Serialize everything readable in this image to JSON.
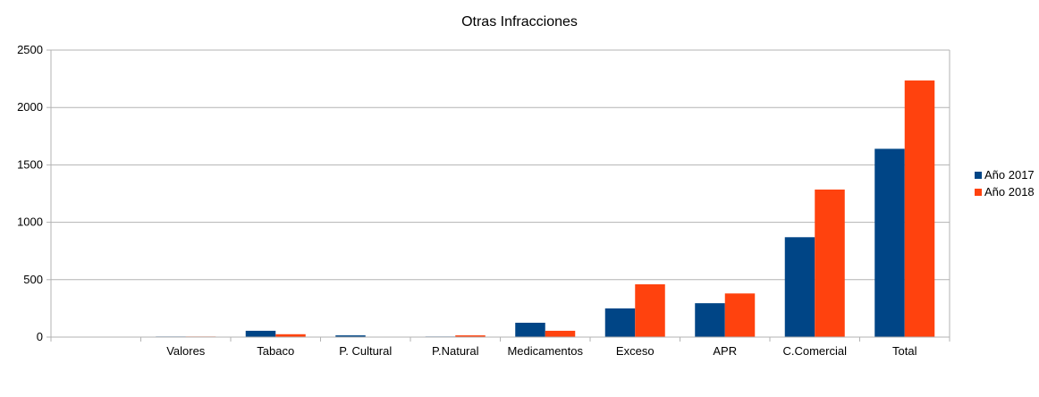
{
  "chart_data": {
    "type": "bar",
    "title": "Otras Infracciones",
    "xlabel": "",
    "ylabel": "",
    "categories": [
      "",
      "Valores",
      "Tabaco",
      "P. Cultural",
      "P.Natural",
      "Medicamentos",
      "Exceso",
      "APR",
      "C.Comercial",
      "Total"
    ],
    "series": [
      {
        "name": "Año 2017",
        "color": "#004586",
        "values": [
          0,
          5,
          55,
          15,
          5,
          125,
          250,
          295,
          870,
          1640
        ]
      },
      {
        "name": "Año 2018",
        "color": "#ff420e",
        "values": [
          0,
          5,
          25,
          0,
          15,
          55,
          460,
          380,
          1285,
          2235
        ]
      }
    ],
    "ylim": [
      0,
      2500
    ],
    "yticks": [
      0,
      500,
      1000,
      1500,
      2000,
      2500
    ],
    "grid": true,
    "legend_position": "right"
  }
}
